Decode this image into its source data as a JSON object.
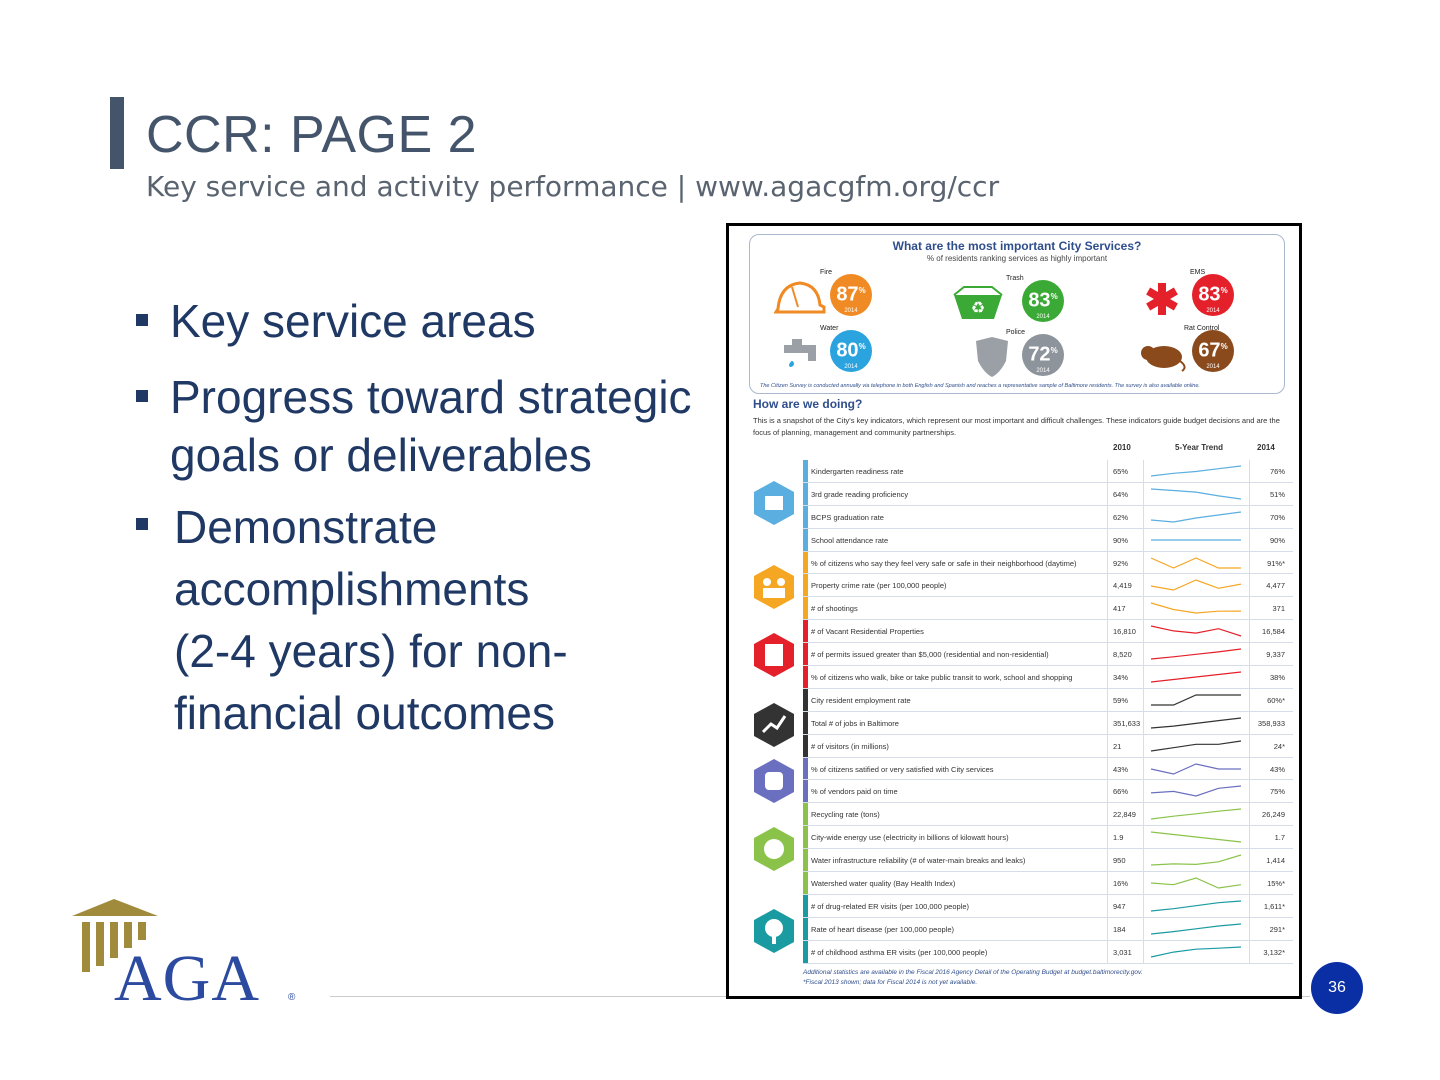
{
  "slide": {
    "title": "CCR: PAGE 2",
    "subtitle": "Key service and activity performance | www.agacgfm.org/ccr",
    "page_number": "36"
  },
  "bullets": [
    {
      "text": "Key service areas"
    },
    {
      "line1": "Progress toward strategic",
      "line2": "goals or deliverables"
    },
    {
      "line1": "Demonstrate",
      "line2": "accomplishments",
      "line3": "(2-4 years) for non-",
      "line4": "financial outcomes"
    }
  ],
  "logo": {
    "text": "AGA",
    "mark": "®"
  },
  "document": {
    "survey_title": "What are the most important City Services?",
    "survey_subtitle": "% of residents ranking services as highly important",
    "services": [
      {
        "name": "Fire",
        "pct": "87",
        "year": "2014",
        "color": "#f08a24",
        "icon": "fire-helmet-icon"
      },
      {
        "name": "Trash",
        "pct": "83",
        "year": "2014",
        "color": "#3aa935",
        "icon": "recycling-bin-icon"
      },
      {
        "name": "EMS",
        "pct": "83",
        "year": "2014",
        "color": "#e4202a",
        "icon": "star-of-life-icon"
      },
      {
        "name": "Water",
        "pct": "80",
        "year": "2014",
        "color": "#2aa3de",
        "icon": "faucet-icon"
      },
      {
        "name": "Police",
        "pct": "72",
        "year": "2014",
        "color": "#8e949b",
        "icon": "police-badge-icon"
      },
      {
        "name": "Rat Control",
        "pct": "67",
        "year": "2014",
        "color": "#8a4a1c",
        "icon": "rat-icon"
      }
    ],
    "survey_note": "The Citizen Survey is conducted annually via telephone in both English and Spanish and reaches a representative sample of Baltimore residents. The survey is also available online.",
    "how_title": "How are we doing?",
    "how_desc": "This is a snapshot of the City's key indicators, which represent our most important and difficult challenges. These indicators guide budget decisions and are the focus of planning, management and community partnerships.",
    "col_2010": "2010",
    "col_trend": "5-Year Trend",
    "col_2014": "2014",
    "indicators": [
      {
        "label": "Kindergarten readiness rate",
        "v2010": "65%",
        "v2014": "76%",
        "color": "#5aaee0",
        "trend": [
          65,
          68,
          70,
          73,
          76
        ]
      },
      {
        "label": "3rd grade reading proficiency",
        "v2010": "64%",
        "v2014": "51%",
        "color": "#5aaee0",
        "trend": [
          64,
          62,
          60,
          55,
          51
        ]
      },
      {
        "label": "BCPS graduation rate",
        "v2010": "62%",
        "v2014": "70%",
        "color": "#5aaee0",
        "trend": [
          62,
          60,
          64,
          67,
          70
        ]
      },
      {
        "label": "School attendance rate",
        "v2010": "90%",
        "v2014": "90%",
        "color": "#5aaee0",
        "trend": [
          90,
          90,
          90,
          90,
          90
        ]
      },
      {
        "label": "% of citizens who say they feel very safe or safe in their neighborhood (daytime)",
        "v2010": "92%",
        "v2014": "91%*",
        "color": "#f5a623",
        "trend": [
          92,
          91,
          92,
          91,
          91
        ]
      },
      {
        "label": "Property crime rate (per 100,000 people)",
        "v2010": "4,419",
        "v2014": "4,477",
        "color": "#f5a623",
        "trend": [
          4419,
          4300,
          4600,
          4350,
          4477
        ]
      },
      {
        "label": "# of shootings",
        "v2010": "417",
        "v2014": "371",
        "color": "#f5a623",
        "trend": [
          417,
          380,
          360,
          370,
          371
        ]
      },
      {
        "label": "# of Vacant Residential Properties",
        "v2010": "16,810",
        "v2014": "16,584",
        "color": "#e4202a",
        "trend": [
          16810,
          16700,
          16650,
          16750,
          16584
        ]
      },
      {
        "label": "# of permits issued greater than $5,000 (residential and non-residential)",
        "v2010": "8,520",
        "v2014": "9,337",
        "color": "#e4202a",
        "trend": [
          8520,
          8700,
          8900,
          9100,
          9337
        ]
      },
      {
        "label": "% of citizens who walk, bike or take public transit to work, school and shopping",
        "v2010": "34%",
        "v2014": "38%",
        "color": "#e4202a",
        "trend": [
          34,
          35,
          36,
          37,
          38
        ]
      },
      {
        "label": "City resident employment rate",
        "v2010": "59%",
        "v2014": "60%*",
        "color": "#333333",
        "trend": [
          59,
          59,
          60,
          60,
          60
        ]
      },
      {
        "label": "Total # of jobs in Baltimore",
        "v2010": "351,633",
        "v2014": "358,933",
        "color": "#333333",
        "trend": [
          351633,
          353000,
          355000,
          357000,
          358933
        ]
      },
      {
        "label": "# of visitors (in millions)",
        "v2010": "21",
        "v2014": "24*",
        "color": "#333333",
        "trend": [
          21,
          22,
          23,
          23,
          24
        ]
      },
      {
        "label": "% of citizens satified or very satisfied with City services",
        "v2010": "43%",
        "v2014": "43%",
        "color": "#6a6fc0",
        "trend": [
          43,
          42,
          44,
          43,
          43
        ]
      },
      {
        "label": "% of vendors paid on time",
        "v2010": "66%",
        "v2014": "75%",
        "color": "#6a6fc0",
        "trend": [
          66,
          68,
          62,
          72,
          75
        ]
      },
      {
        "label": "Recycling rate (tons)",
        "v2010": "22,849",
        "v2014": "26,249",
        "color": "#8bc34a",
        "trend": [
          22849,
          23800,
          24600,
          25500,
          26249
        ]
      },
      {
        "label": "City-wide energy use (electricity in billions of kilowatt hours)",
        "v2010": "1.9",
        "v2014": "1.7",
        "color": "#8bc34a",
        "trend": [
          1.9,
          1.85,
          1.8,
          1.75,
          1.7
        ]
      },
      {
        "label": "Water infrastructure reliability (# of water-main breaks and leaks)",
        "v2010": "950",
        "v2014": "1,414",
        "color": "#8bc34a",
        "trend": [
          950,
          1000,
          980,
          1100,
          1414
        ]
      },
      {
        "label": "Watershed water quality (Bay Health Index)",
        "v2010": "16%",
        "v2014": "15%*",
        "color": "#8bc34a",
        "trend": [
          16,
          15,
          19,
          13,
          15
        ]
      },
      {
        "label": "# of drug-related ER visits (per 100,000 people)",
        "v2010": "947",
        "v2014": "1,611*",
        "color": "#1a9ba1",
        "trend": [
          947,
          1100,
          1300,
          1500,
          1611
        ]
      },
      {
        "label": "Rate of heart disease (per 100,000 people)",
        "v2010": "184",
        "v2014": "291*",
        "color": "#1a9ba1",
        "trend": [
          184,
          210,
          240,
          270,
          291
        ]
      },
      {
        "label": "# of childhood asthma ER visits (per 100,000 people)",
        "v2010": "3,031",
        "v2014": "3,132*",
        "color": "#1a9ba1",
        "trend": [
          3031,
          3080,
          3110,
          3120,
          3132
        ]
      }
    ],
    "footer_line1": "Additional statistics are available in the Fiscal 2016 Agency Detail of the Operating Budget at budget.baltimorecity.gov.",
    "footer_line2": "*Fiscal 2013 shown; data for Fiscal 2014 is not yet available."
  }
}
